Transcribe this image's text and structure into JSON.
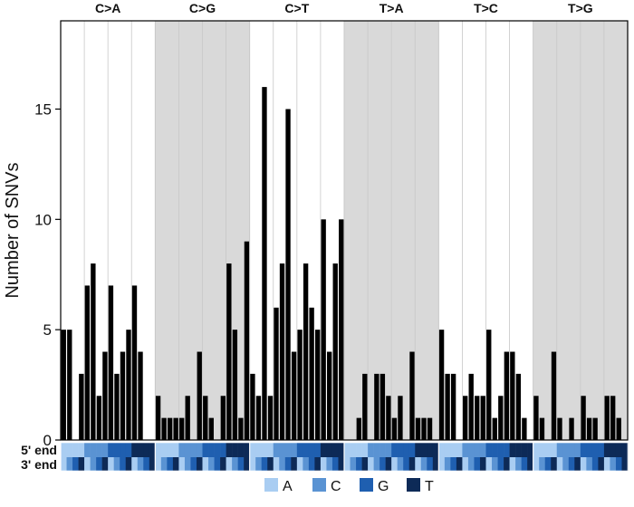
{
  "chart_data": {
    "type": "bar",
    "ylabel": "Number of SNVs",
    "ylim": [
      0,
      19
    ],
    "yticks": [
      0,
      5,
      10,
      15
    ],
    "ytick_labels": [
      "0",
      "5",
      "10",
      "15"
    ],
    "grid": true,
    "legend_position": "bottom",
    "groups": [
      {
        "name": "C>A",
        "shaded": false,
        "values": [
          5,
          5,
          0,
          3,
          7,
          8,
          2,
          4,
          7,
          3,
          4,
          5,
          7,
          4,
          0,
          0
        ]
      },
      {
        "name": "C>G",
        "shaded": true,
        "values": [
          2,
          1,
          1,
          1,
          1,
          2,
          0,
          4,
          2,
          1,
          0,
          2,
          8,
          5,
          1,
          9
        ]
      },
      {
        "name": "C>T",
        "shaded": false,
        "values": [
          3,
          2,
          16,
          2,
          6,
          8,
          15,
          4,
          5,
          8,
          6,
          5,
          10,
          4,
          8,
          10
        ]
      },
      {
        "name": "T>A",
        "shaded": true,
        "values": [
          0,
          0,
          1,
          3,
          0,
          3,
          3,
          2,
          1,
          2,
          0,
          4,
          1,
          1,
          1,
          0
        ]
      },
      {
        "name": "T>C",
        "shaded": false,
        "values": [
          5,
          3,
          3,
          0,
          2,
          3,
          2,
          2,
          5,
          1,
          2,
          4,
          4,
          3,
          1,
          0
        ]
      },
      {
        "name": "T>G",
        "shaded": true,
        "values": [
          2,
          1,
          0,
          4,
          1,
          0,
          1,
          0,
          2,
          1,
          1,
          0,
          2,
          2,
          1,
          0
        ]
      }
    ],
    "context_rows": {
      "five_prime_label": "5' end",
      "three_prime_label": "3' end"
    },
    "legend": [
      {
        "base": "A",
        "color": "#a9cdf2"
      },
      {
        "base": "C",
        "color": "#5a93d3"
      },
      {
        "base": "G",
        "color": "#1f5fb0"
      },
      {
        "base": "T",
        "color": "#0d2a57"
      }
    ],
    "colors": {
      "bar": "#000000",
      "shaded_band": "#d9d9d9",
      "gridline": "#c8c8c8"
    }
  }
}
